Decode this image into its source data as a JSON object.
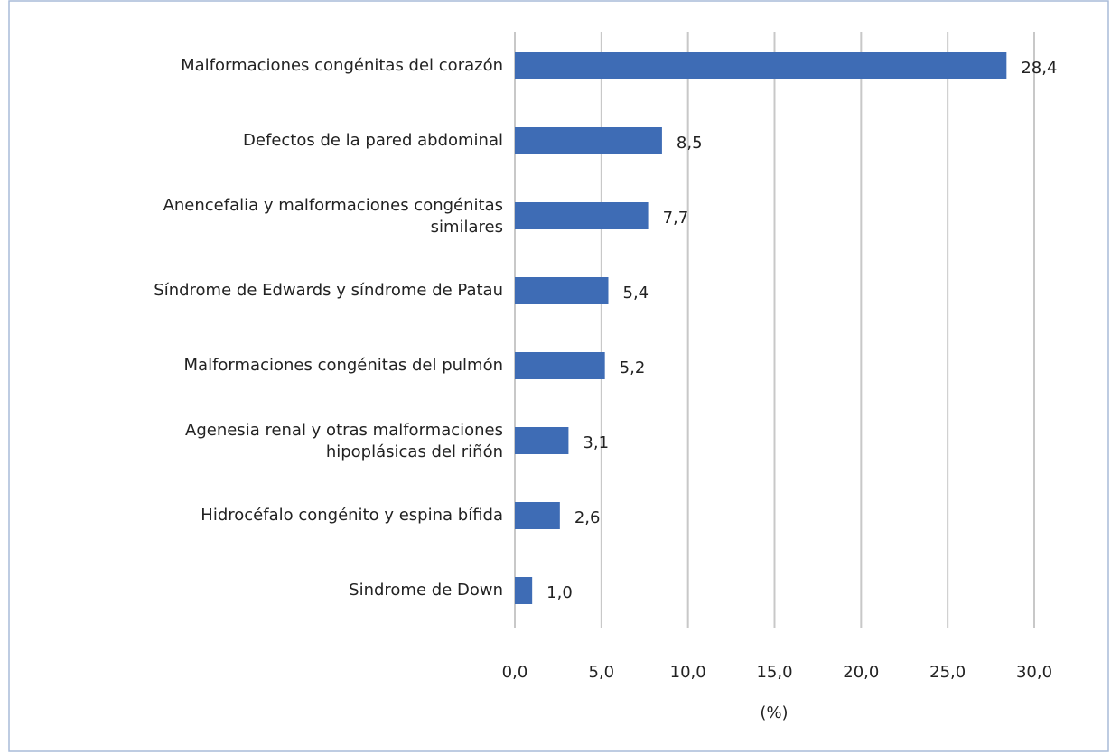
{
  "chart_data": {
    "type": "bar",
    "orientation": "horizontal",
    "categories": [
      "Malformaciones congénitas del corazón",
      "Defectos de la pared abdominal",
      "Anencefalia y malformaciones congénitas similares",
      "Síndrome de Edwards y síndrome de Patau",
      "Malformaciones congénitas del pulmón",
      "Agenesia renal y otras malformaciones hipoplásicas del riñón",
      "Hidrocéfalo congénito y espina bífida",
      "Sindrome de Down"
    ],
    "values": [
      28.4,
      8.5,
      7.7,
      5.4,
      5.2,
      3.1,
      2.6,
      1.0
    ],
    "value_labels": [
      "28,4",
      "8,5",
      "7,7",
      "5,4",
      "5,2",
      "3,1",
      "2,6",
      "1,0"
    ],
    "color": "#3e6cb5",
    "xlabel": "(%)",
    "xlim": [
      0,
      30
    ],
    "xticks": [
      {
        "value": 0,
        "label": "0,0"
      },
      {
        "value": 5,
        "label": "5,0"
      },
      {
        "value": 10,
        "label": "10,0"
      },
      {
        "value": 15,
        "label": "15,0"
      },
      {
        "value": 20,
        "label": "20,0"
      },
      {
        "value": 25,
        "label": "25,0"
      },
      {
        "value": 30,
        "label": "30,0"
      }
    ],
    "grid": true
  }
}
